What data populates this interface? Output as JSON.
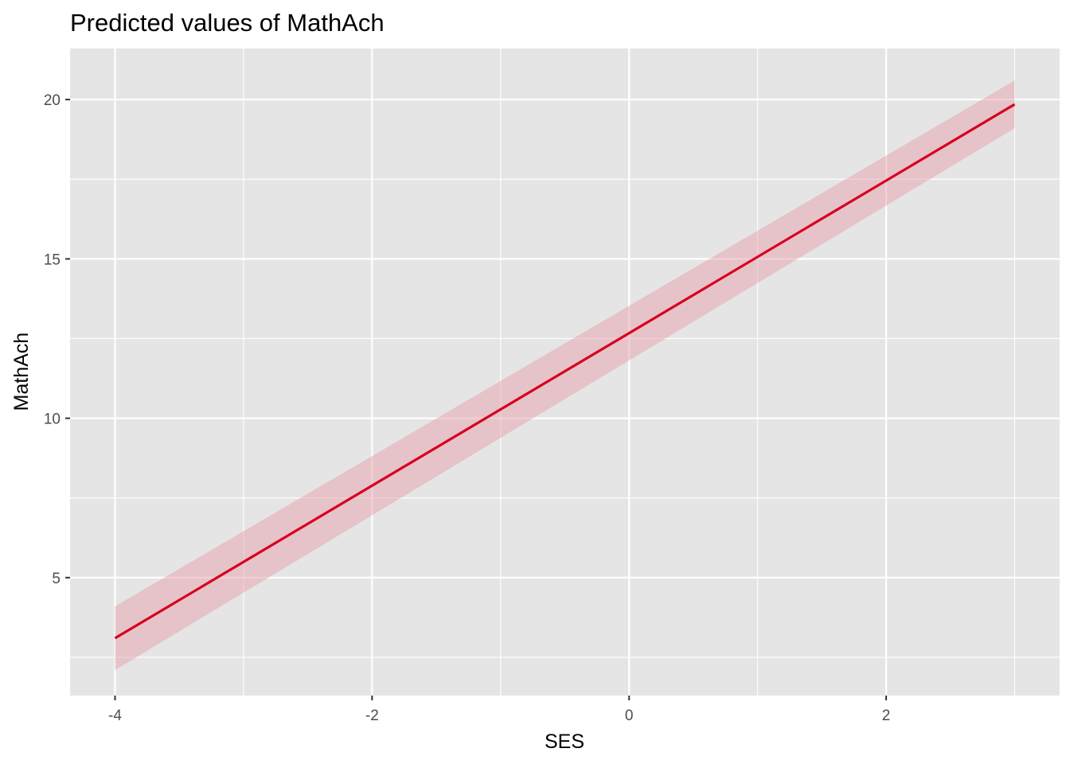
{
  "chart_data": {
    "type": "line",
    "title": "Predicted values of MathAch",
    "xlabel": "SES",
    "ylabel": "MathAch",
    "xlim": [
      -4.35,
      3.35
    ],
    "ylim": [
      1.3,
      21.6
    ],
    "x_ticks": [
      -4,
      -2,
      0,
      2
    ],
    "x_tick_labels": [
      "-4",
      "-2",
      "0",
      "2"
    ],
    "y_ticks": [
      5,
      10,
      15,
      20
    ],
    "y_tick_labels": [
      "5",
      "10",
      "15",
      "20"
    ],
    "x_minor": [
      -3,
      -1,
      1,
      3
    ],
    "y_minor": [
      2.5,
      7.5,
      12.5,
      17.5
    ],
    "grid": true,
    "panel_color": "#e5e5e5",
    "line_color": "#d7001f",
    "band_color": "#e8a2ae",
    "series": [
      {
        "x": [
          -4,
          3
        ],
        "y": [
          3.1,
          19.85
        ],
        "lower": [
          2.1,
          19.1
        ],
        "upper": [
          4.1,
          20.6
        ]
      }
    ]
  }
}
